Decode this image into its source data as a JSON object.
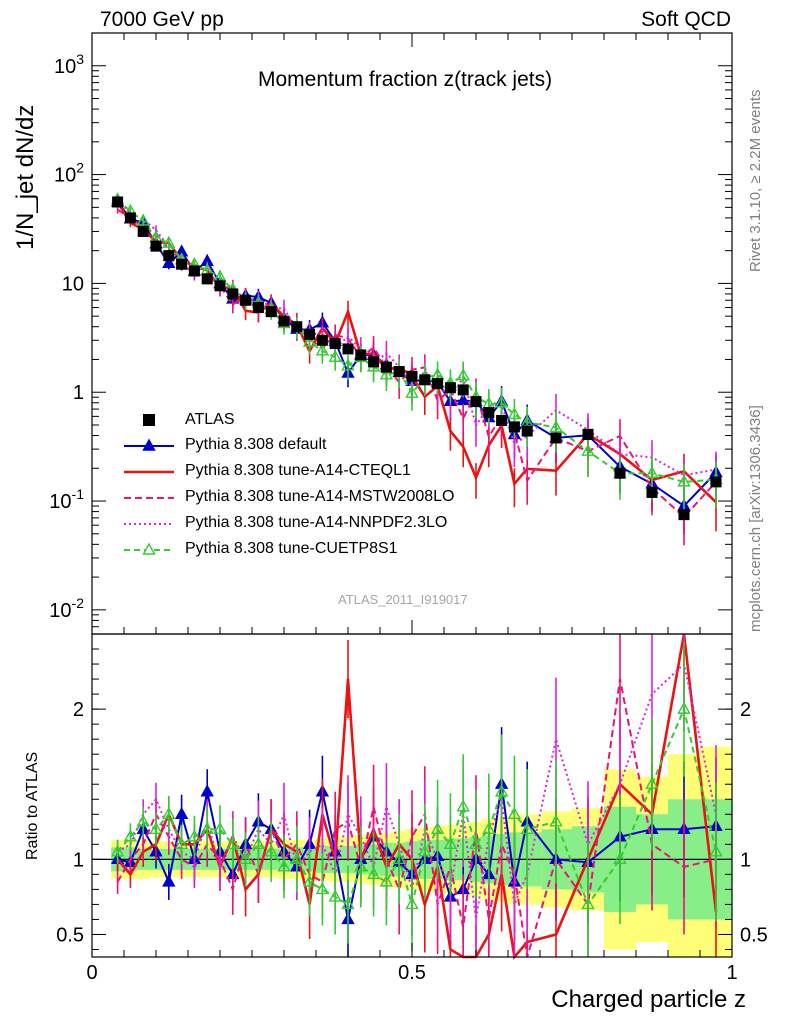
{
  "header": {
    "left": "7000 GeV pp",
    "right": "Soft QCD"
  },
  "side_text": {
    "rivet": "Rivet 3.1.10, ≥ 2.2M events",
    "mcplots": "mcplots.cern.ch [arXiv:1306.3436]"
  },
  "watermark": "ATLAS_2011_I919017",
  "axis": {
    "xlabel": "Charged particle z",
    "ylabel_main": "1/N_jet dN/dz",
    "ylabel_ratio": "Ratio to ATLAS"
  },
  "main_title": "Momentum fraction z(track jets)",
  "legend": [
    {
      "label": "ATLAS",
      "color": "#000000",
      "style": "square"
    },
    {
      "label": "Pythia 8.308 default",
      "color": "#0000cc",
      "style": "triangle-solid"
    },
    {
      "label": "Pythia 8.308 tune-A14-CTEQL1",
      "color": "#ee1111",
      "style": "solid"
    },
    {
      "label": "Pythia 8.308 tune-A14-MSTW2008LO",
      "color": "#ee1177",
      "style": "dashed"
    },
    {
      "label": "Pythia 8.308 tune-A14-NNPDF2.3LO",
      "color": "#dd22dd",
      "style": "dotted"
    },
    {
      "label": "Pythia 8.308 tune-CUETP8S1",
      "color": "#33cc33",
      "style": "dashed-open-triangle"
    }
  ],
  "chart_data": {
    "type": "scatter",
    "x_range": [
      0,
      1
    ],
    "main_y_scale": "log",
    "main_y_range": [
      0.006,
      2000
    ],
    "ratio_y_range": [
      0.35,
      2.5
    ],
    "main_y_ticks": [
      "10^-2",
      "10^-1",
      "1",
      "10",
      "10^2",
      "10^3"
    ],
    "ratio_y_ticks": [
      "0.5",
      "1",
      "2"
    ],
    "x_ticks": [
      "0",
      "0.5",
      "1"
    ],
    "x": [
      0.04,
      0.06,
      0.08,
      0.1,
      0.12,
      0.14,
      0.16,
      0.18,
      0.2,
      0.22,
      0.24,
      0.26,
      0.28,
      0.3,
      0.32,
      0.34,
      0.36,
      0.38,
      0.4,
      0.42,
      0.44,
      0.46,
      0.48,
      0.5,
      0.52,
      0.54,
      0.56,
      0.58,
      0.6,
      0.62,
      0.64,
      0.66,
      0.68,
      0.725,
      0.775,
      0.825,
      0.875,
      0.925,
      0.975
    ],
    "series": [
      {
        "name": "ATLAS",
        "values": [
          56,
          40,
          30,
          22,
          18,
          15,
          13,
          11,
          9.5,
          8,
          7,
          6,
          5.5,
          4.5,
          4,
          3.4,
          3,
          2.8,
          2.5,
          2.2,
          1.9,
          1.7,
          1.55,
          1.4,
          1.3,
          1.2,
          1.1,
          1.05,
          0.82,
          0.65,
          0.55,
          0.48,
          0.44,
          0.38,
          0.41,
          0.18,
          0.12,
          0.075,
          0.15
        ]
      },
      {
        "name": "Pythia 8.308 default",
        "ratio": [
          1.0,
          0.98,
          1.2,
          1.05,
          0.85,
          1.3,
          1.0,
          1.45,
          1.05,
          0.9,
          1.1,
          1.25,
          1.2,
          1.05,
          0.95,
          1.1,
          1.45,
          1.05,
          0.6,
          1.0,
          1.15,
          1.05,
          0.98,
          0.9,
          1.0,
          1.02,
          0.75,
          0.8,
          1.0,
          0.9,
          1.5,
          0.85,
          1.25,
          1.0,
          0.98,
          1.15,
          1.2,
          1.2,
          1.22
        ]
      },
      {
        "name": "Pythia 8.308 tune-A14-CTEQL1",
        "ratio": [
          1.0,
          0.9,
          1.05,
          1.1,
          1.3,
          1.1,
          1.1,
          1.2,
          0.95,
          1.15,
          0.8,
          0.9,
          1.2,
          1.1,
          1.05,
          0.7,
          1.3,
          1.0,
          2.2,
          1.0,
          1.2,
          0.95,
          1.1,
          1.0,
          0.7,
          0.95,
          0.4,
          0.3,
          0.2,
          0.5,
          0.9,
          0.3,
          0.45,
          0.5,
          1.0,
          1.5,
          1.3,
          2.5,
          0.65
        ]
      },
      {
        "name": "Pythia 8.308 tune-A14-MSTW2008LO",
        "ratio": [
          0.85,
          1.0,
          1.1,
          1.3,
          1.15,
          1.0,
          0.95,
          1.1,
          1.0,
          0.8,
          1.1,
          0.9,
          1.2,
          1.0,
          1.1,
          0.9,
          0.85,
          1.2,
          1.25,
          0.95,
          1.35,
          1.0,
          0.8,
          1.15,
          1.3,
          0.7,
          0.95,
          0.55,
          1.2,
          0.6,
          1.1,
          0.9,
          0.35,
          1.0,
          0.7,
          2.2,
          1.1,
          0.95,
          1.0
        ]
      },
      {
        "name": "Pythia 8.308 tune-A14-NNPDF2.3LO",
        "ratio": [
          1.05,
          1.1,
          1.3,
          1.4,
          1.2,
          1.05,
          1.0,
          1.25,
          0.95,
          1.15,
          1.0,
          1.2,
          1.1,
          1.3,
          0.95,
          1.05,
          1.1,
          0.9,
          1.3,
          1.15,
          0.95,
          1.35,
          1.1,
          0.8,
          1.2,
          1.0,
          0.8,
          1.3,
          0.6,
          1.15,
          1.4,
          0.7,
          0.9,
          1.8,
          1.1,
          1.5,
          2.1,
          2.3,
          1.3
        ]
      },
      {
        "name": "Pythia 8.308 tune-CUETP8S1",
        "ratio": [
          1.05,
          1.15,
          1.25,
          1.2,
          1.3,
          1.1,
          1.15,
          1.2,
          1.2,
          1.1,
          1.0,
          1.1,
          1.05,
          0.95,
          1.0,
          0.85,
          0.8,
          0.75,
          0.7,
          0.95,
          0.9,
          0.85,
          1.0,
          0.7,
          1.05,
          1.2,
          1.1,
          1.35,
          1.1,
          1.2,
          1.45,
          1.3,
          1.2,
          1.25,
          0.7,
          1.0,
          1.5,
          2.0,
          1.05
        ]
      }
    ],
    "band_outer": [
      0.13,
      0.13,
      0.13,
      0.12,
      0.12,
      0.12,
      0.12,
      0.12,
      0.12,
      0.12,
      0.12,
      0.12,
      0.12,
      0.13,
      0.13,
      0.13,
      0.14,
      0.15,
      0.15,
      0.16,
      0.17,
      0.18,
      0.19,
      0.2,
      0.21,
      0.22,
      0.23,
      0.24,
      0.25,
      0.27,
      0.28,
      0.3,
      0.3,
      0.32,
      0.34,
      0.6,
      0.55,
      0.7,
      0.75
    ],
    "band_inner": [
      0.08,
      0.08,
      0.07,
      0.07,
      0.07,
      0.07,
      0.07,
      0.07,
      0.07,
      0.07,
      0.07,
      0.07,
      0.07,
      0.07,
      0.08,
      0.08,
      0.09,
      0.09,
      0.09,
      0.1,
      0.1,
      0.11,
      0.11,
      0.12,
      0.13,
      0.13,
      0.14,
      0.14,
      0.15,
      0.16,
      0.17,
      0.18,
      0.18,
      0.2,
      0.22,
      0.35,
      0.3,
      0.4,
      0.4
    ],
    "reference_line": 1
  }
}
